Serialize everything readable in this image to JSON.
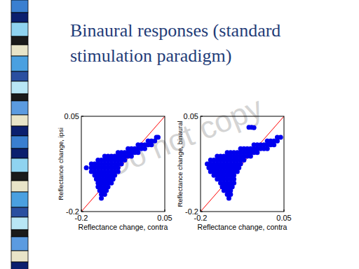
{
  "title": "Binaural responses (standard stimulation paradigm)",
  "watermark": "Do not copy",
  "chart_data": [
    {
      "type": "scatter",
      "x_label": "Reflectance change, contra",
      "y_label": "Reflectance change, ipsi",
      "xlim": [
        -0.2,
        0.05
      ],
      "ylim": [
        -0.2,
        0.05
      ],
      "xticks": [
        -0.2,
        0.05
      ],
      "yticks": [
        -0.2,
        0.05
      ],
      "series": [
        {
          "type": "line",
          "color": "#ff0000",
          "x": [
            -0.2,
            0.05
          ],
          "values": [
            -0.2,
            0.05
          ]
        },
        {
          "type": "scatter",
          "color": "#0000ee",
          "marker": "circle",
          "x": [
            0.025,
            0.03,
            0.0,
            0.01,
            0.02,
            -0.03,
            -0.02,
            -0.01,
            0.0,
            0.01,
            -0.06,
            -0.05,
            -0.04,
            -0.03,
            -0.02,
            -0.01,
            -0.09,
            -0.08,
            -0.07,
            -0.06,
            -0.05,
            -0.04,
            -0.03,
            -0.13,
            -0.12,
            -0.11,
            -0.1,
            -0.09,
            -0.08,
            -0.07,
            -0.06,
            -0.05,
            -0.15,
            -0.14,
            -0.13,
            -0.12,
            -0.11,
            -0.1,
            -0.09,
            -0.08,
            -0.07,
            -0.17,
            -0.16,
            -0.15,
            -0.14,
            -0.13,
            -0.12,
            -0.11,
            -0.1,
            -0.09,
            -0.08,
            -0.185,
            -0.17,
            -0.16,
            -0.15,
            -0.14,
            -0.13,
            -0.12,
            -0.11,
            -0.1,
            -0.09,
            -0.17,
            -0.16,
            -0.15,
            -0.14,
            -0.13,
            -0.12,
            -0.11,
            -0.1,
            -0.09,
            -0.16,
            -0.15,
            -0.14,
            -0.13,
            -0.12,
            -0.11,
            -0.1,
            -0.155,
            -0.145,
            -0.135,
            -0.125,
            -0.115,
            -0.105,
            -0.15,
            -0.14,
            -0.13,
            -0.12,
            -0.11,
            -0.15,
            -0.14,
            -0.13,
            -0.12,
            -0.145,
            -0.135,
            -0.125,
            -0.14,
            -0.13,
            -0.14
          ],
          "values": [
            -0.005,
            -0.005,
            -0.015,
            -0.015,
            -0.015,
            -0.025,
            -0.025,
            -0.025,
            -0.025,
            -0.025,
            -0.035,
            -0.035,
            -0.035,
            -0.035,
            -0.035,
            -0.035,
            -0.045,
            -0.045,
            -0.045,
            -0.045,
            -0.045,
            -0.045,
            -0.045,
            -0.055,
            -0.055,
            -0.055,
            -0.055,
            -0.055,
            -0.055,
            -0.055,
            -0.055,
            -0.055,
            -0.065,
            -0.065,
            -0.065,
            -0.065,
            -0.065,
            -0.065,
            -0.065,
            -0.065,
            -0.065,
            -0.075,
            -0.075,
            -0.075,
            -0.075,
            -0.075,
            -0.075,
            -0.075,
            -0.075,
            -0.075,
            -0.075,
            -0.085,
            -0.085,
            -0.085,
            -0.085,
            -0.085,
            -0.085,
            -0.085,
            -0.085,
            -0.085,
            -0.085,
            -0.095,
            -0.095,
            -0.095,
            -0.095,
            -0.095,
            -0.095,
            -0.095,
            -0.095,
            -0.095,
            -0.105,
            -0.105,
            -0.105,
            -0.105,
            -0.105,
            -0.105,
            -0.105,
            -0.115,
            -0.115,
            -0.115,
            -0.115,
            -0.115,
            -0.115,
            -0.125,
            -0.125,
            -0.125,
            -0.125,
            -0.125,
            -0.135,
            -0.135,
            -0.135,
            -0.135,
            -0.145,
            -0.145,
            -0.145,
            -0.155,
            -0.155,
            -0.165
          ]
        }
      ]
    },
    {
      "type": "scatter",
      "x_label": "Reflectance change, contra",
      "y_label": "Reflectance change, binaural",
      "xlim": [
        -0.2,
        0.05
      ],
      "ylim": [
        -0.2,
        0.05
      ],
      "xticks": [
        -0.2,
        0.05
      ],
      "yticks": [
        -0.2,
        0.05
      ],
      "series": [
        {
          "type": "line",
          "color": "#ff0000",
          "x": [
            -0.2,
            0.05
          ],
          "values": [
            -0.2,
            0.05
          ]
        },
        {
          "type": "scatter",
          "color": "#0000ee",
          "marker": "circle",
          "x": [
            0.03,
            0.04,
            0.0,
            0.01,
            0.02,
            0.03,
            -0.04,
            -0.03,
            -0.02,
            -0.01,
            0.0,
            0.01,
            0.02,
            -0.08,
            -0.07,
            -0.06,
            -0.05,
            -0.04,
            -0.03,
            -0.02,
            -0.01,
            0.0,
            -0.12,
            -0.11,
            -0.1,
            -0.09,
            -0.08,
            -0.07,
            -0.06,
            -0.05,
            -0.04,
            -0.03,
            -0.15,
            -0.14,
            -0.13,
            -0.12,
            -0.11,
            -0.1,
            -0.09,
            -0.08,
            -0.07,
            -0.06,
            -0.05,
            -0.17,
            -0.16,
            -0.15,
            -0.14,
            -0.13,
            -0.12,
            -0.11,
            -0.1,
            -0.09,
            -0.08,
            -0.07,
            -0.18,
            -0.17,
            -0.16,
            -0.15,
            -0.14,
            -0.13,
            -0.12,
            -0.11,
            -0.1,
            -0.09,
            -0.08,
            -0.175,
            -0.165,
            -0.155,
            -0.145,
            -0.135,
            -0.125,
            -0.115,
            -0.105,
            -0.095,
            -0.085,
            -0.17,
            -0.16,
            -0.15,
            -0.14,
            -0.13,
            -0.12,
            -0.11,
            -0.1,
            -0.09,
            -0.16,
            -0.15,
            -0.14,
            -0.13,
            -0.12,
            -0.11,
            -0.1,
            -0.15,
            -0.14,
            -0.13,
            -0.12,
            -0.11,
            -0.1,
            -0.14,
            -0.13,
            -0.12,
            -0.11,
            -0.1,
            -0.135,
            -0.125,
            -0.115,
            -0.105,
            -0.13,
            -0.12,
            -0.11,
            -0.12,
            -0.11,
            -0.115,
            -0.055,
            -0.047,
            -0.04
          ],
          "values": [
            -0.005,
            -0.005,
            -0.015,
            -0.015,
            -0.015,
            -0.015,
            -0.025,
            -0.025,
            -0.025,
            -0.025,
            -0.025,
            -0.025,
            -0.025,
            -0.035,
            -0.035,
            -0.035,
            -0.035,
            -0.035,
            -0.035,
            -0.035,
            -0.035,
            -0.035,
            -0.045,
            -0.045,
            -0.045,
            -0.045,
            -0.045,
            -0.045,
            -0.045,
            -0.045,
            -0.045,
            -0.045,
            -0.055,
            -0.055,
            -0.055,
            -0.055,
            -0.055,
            -0.055,
            -0.055,
            -0.055,
            -0.055,
            -0.055,
            -0.055,
            -0.065,
            -0.065,
            -0.065,
            -0.065,
            -0.065,
            -0.065,
            -0.065,
            -0.065,
            -0.065,
            -0.065,
            -0.065,
            -0.075,
            -0.075,
            -0.075,
            -0.075,
            -0.075,
            -0.075,
            -0.075,
            -0.075,
            -0.075,
            -0.075,
            -0.075,
            -0.085,
            -0.085,
            -0.085,
            -0.085,
            -0.085,
            -0.085,
            -0.085,
            -0.085,
            -0.085,
            -0.085,
            -0.095,
            -0.095,
            -0.095,
            -0.095,
            -0.095,
            -0.095,
            -0.095,
            -0.095,
            -0.095,
            -0.105,
            -0.105,
            -0.105,
            -0.105,
            -0.105,
            -0.105,
            -0.105,
            -0.115,
            -0.115,
            -0.115,
            -0.115,
            -0.115,
            -0.115,
            -0.125,
            -0.125,
            -0.125,
            -0.125,
            -0.125,
            -0.135,
            -0.135,
            -0.135,
            -0.135,
            -0.145,
            -0.145,
            -0.145,
            -0.155,
            -0.155,
            -0.165,
            0.021,
            0.021,
            0.02
          ]
        }
      ]
    }
  ]
}
